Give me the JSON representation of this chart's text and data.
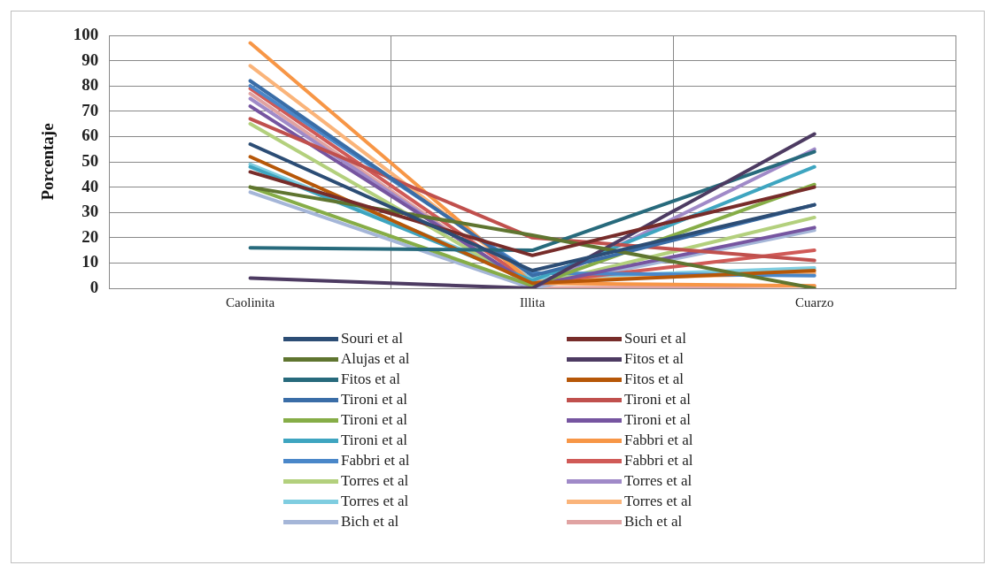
{
  "chart_data": {
    "type": "line",
    "ylabel": "Porcentaje",
    "categories": [
      "Caolinita",
      "Illita",
      "Cuarzo"
    ],
    "ylim": [
      0,
      100
    ],
    "yticks": [
      0,
      10,
      20,
      30,
      40,
      50,
      60,
      70,
      80,
      90,
      100
    ],
    "grid": true,
    "legend": "bottom",
    "marker": "none",
    "line_style": "solid",
    "series": [
      {
        "name": "Souri et al",
        "color": "#2c4d75",
        "values": [
          57,
          7,
          33
        ]
      },
      {
        "name": "Souri et al",
        "color": "#772c2a",
        "values": [
          46,
          13,
          40
        ]
      },
      {
        "name": "Alujas et al",
        "color": "#5f7530",
        "values": [
          40,
          21,
          0
        ]
      },
      {
        "name": "Fitos et al",
        "color": "#4d3b62",
        "values": [
          4,
          0,
          61
        ]
      },
      {
        "name": "Fitos et al",
        "color": "#276a7c",
        "values": [
          16,
          15,
          54
        ]
      },
      {
        "name": "Fitos et al",
        "color": "#b65708",
        "values": [
          52,
          2,
          7
        ]
      },
      {
        "name": "Tironi et al",
        "color": "#3a6da7",
        "values": [
          82,
          5,
          33
        ]
      },
      {
        "name": "Tironi et al",
        "color": "#c0504d",
        "values": [
          67,
          20,
          11
        ]
      },
      {
        "name": "Tironi et al",
        "color": "#86ad47",
        "values": [
          40,
          1,
          41
        ]
      },
      {
        "name": "Tironi et al",
        "color": "#7655a0",
        "values": [
          72,
          1,
          24
        ]
      },
      {
        "name": "Tironi et al",
        "color": "#3ea5c0",
        "values": [
          48,
          3,
          48
        ]
      },
      {
        "name": "Fabbri et al",
        "color": "#f79646",
        "values": [
          97,
          2,
          1
        ]
      },
      {
        "name": "Fabbri et al",
        "color": "#4a87c9",
        "values": [
          80,
          6,
          5
        ]
      },
      {
        "name": "Fabbri et al",
        "color": "#d05a57",
        "values": [
          79,
          2,
          15
        ]
      },
      {
        "name": "Torres et al",
        "color": "#b3d07d",
        "values": [
          65,
          1,
          28
        ]
      },
      {
        "name": "Torres et al",
        "color": "#a08ac8",
        "values": [
          75,
          0,
          55
        ]
      },
      {
        "name": "Torres et al",
        "color": "#7fcde0",
        "values": [
          49,
          4,
          8
        ]
      },
      {
        "name": "Torres et al",
        "color": "#fab47a",
        "values": [
          88,
          3,
          6
        ]
      },
      {
        "name": "Bich et al",
        "color": "#a5b6d8",
        "values": [
          38,
          0,
          23
        ]
      },
      {
        "name": "Bich et al",
        "color": "#e0a3a2",
        "values": [
          77,
          0,
          1
        ]
      }
    ]
  }
}
